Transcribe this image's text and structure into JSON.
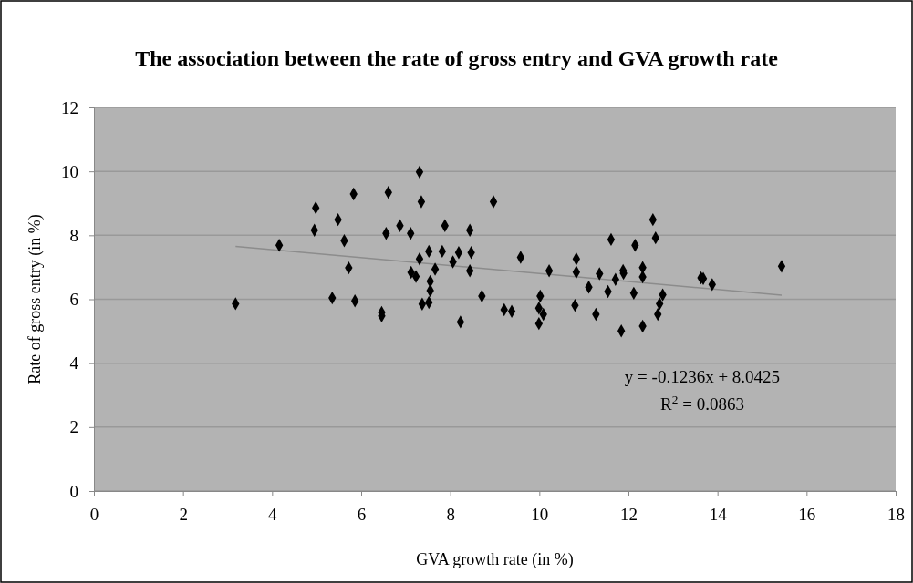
{
  "chart_data": {
    "type": "scatter",
    "title": "The association between the rate of gross entry and GVA growth rate",
    "xlabel": "GVA growth rate (in %)",
    "ylabel": "Rate of gross entry (in %)",
    "xlim": [
      0,
      18
    ],
    "xticks": [
      0,
      2,
      4,
      6,
      8,
      10,
      12,
      14,
      16,
      18
    ],
    "ylim": [
      0,
      12
    ],
    "yticks": [
      0,
      2,
      4,
      6,
      8,
      10,
      12
    ],
    "grid": "y",
    "marker": "diamond",
    "annotations": [
      "y = -0.1236x + 8.0425",
      "R$^{2}$ = 0.0863"
    ],
    "series": [
      {
        "color": "#000000",
        "x": [
          3.18,
          4.16,
          4.98,
          4.95,
          5.48,
          5.83,
          5.62,
          5.72,
          5.35,
          5.86,
          6.46,
          6.46,
          6.61,
          6.56,
          6.87,
          7.11,
          7.31,
          7.35,
          7.88,
          7.52,
          7.82,
          7.31,
          7.66,
          7.12,
          7.23,
          7.55,
          7.55,
          7.37,
          7.52,
          8.06,
          8.19,
          8.44,
          8.47,
          8.44,
          8.23,
          8.71,
          8.97,
          9.21,
          9.38,
          9.58,
          10.02,
          9.99,
          10.09,
          9.99,
          10.22,
          10.83,
          10.83,
          10.8,
          11.11,
          11.27,
          11.35,
          11.54,
          11.61,
          11.71,
          11.84,
          11.88,
          11.89,
          12.15,
          12.12,
          12.32,
          12.32,
          12.32,
          12.55,
          12.61,
          12.77,
          12.7,
          12.66,
          13.63,
          13.68,
          13.88,
          15.44
        ],
        "values": [
          5.86,
          7.69,
          8.86,
          8.16,
          8.49,
          9.29,
          7.83,
          6.98,
          6.04,
          5.95,
          5.59,
          5.48,
          9.34,
          8.06,
          8.3,
          8.06,
          9.98,
          9.05,
          8.3,
          7.5,
          7.5,
          7.26,
          6.94,
          6.84,
          6.71,
          6.56,
          6.27,
          5.85,
          5.9,
          7.17,
          7.46,
          8.16,
          7.46,
          6.89,
          5.29,
          6.1,
          9.05,
          5.67,
          5.62,
          7.31,
          6.1,
          5.72,
          5.53,
          5.24,
          6.89,
          7.26,
          6.85,
          5.81,
          6.38,
          5.53,
          6.8,
          6.24,
          7.87,
          6.62,
          5.01,
          6.9,
          6.81,
          7.69,
          6.19,
          6.99,
          6.7,
          5.16,
          8.49,
          7.92,
          6.14,
          5.86,
          5.53,
          6.67,
          6.65,
          6.46,
          7.03
        ]
      },
      {
        "type": "line",
        "color": "#8c8c8c",
        "marker": "none",
        "line_style": "solid",
        "x": [
          3.18,
          15.44
        ],
        "values": [
          7.65,
          6.13
        ]
      }
    ]
  }
}
